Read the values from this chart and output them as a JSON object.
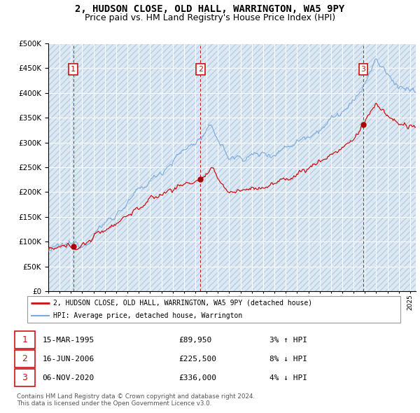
{
  "title": "2, HUDSON CLOSE, OLD HALL, WARRINGTON, WA5 9PY",
  "subtitle": "Price paid vs. HM Land Registry's House Price Index (HPI)",
  "background_color": "#ffffff",
  "plot_bg_color": "#dce9f5",
  "grid_color": "#ffffff",
  "ylim": [
    0,
    500000
  ],
  "yticks": [
    0,
    50000,
    100000,
    150000,
    200000,
    250000,
    300000,
    350000,
    400000,
    450000,
    500000
  ],
  "ytick_labels": [
    "£0",
    "£50K",
    "£100K",
    "£150K",
    "£200K",
    "£250K",
    "£300K",
    "£350K",
    "£400K",
    "£450K",
    "£500K"
  ],
  "xlim_start": 1993.0,
  "xlim_end": 2025.5,
  "sale_dates": [
    1995.21,
    2006.46,
    2020.85
  ],
  "sale_prices": [
    89950,
    225500,
    336000
  ],
  "sale_labels": [
    "1",
    "2",
    "3"
  ],
  "hpi_line_color": "#7aaadd",
  "price_line_color": "#cc1111",
  "sale_marker_color": "#aa0000",
  "sale_label_color": "#cc1111",
  "vline_color": "#cc1111",
  "legend_entries": [
    "2, HUDSON CLOSE, OLD HALL, WARRINGTON, WA5 9PY (detached house)",
    "HPI: Average price, detached house, Warrington"
  ],
  "table_data": [
    [
      "1",
      "15-MAR-1995",
      "£89,950",
      "3% ↑ HPI"
    ],
    [
      "2",
      "16-JUN-2006",
      "£225,500",
      "8% ↓ HPI"
    ],
    [
      "3",
      "06-NOV-2020",
      "£336,000",
      "4% ↓ HPI"
    ]
  ],
  "footer": "Contains HM Land Registry data © Crown copyright and database right 2024.\nThis data is licensed under the Open Government Licence v3.0.",
  "title_fontsize": 10,
  "subtitle_fontsize": 9
}
